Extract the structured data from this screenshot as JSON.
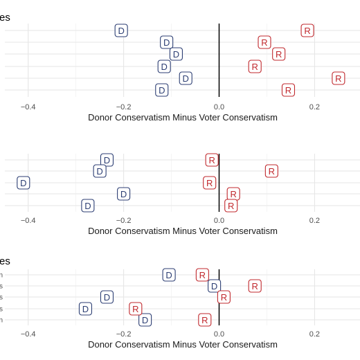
{
  "colors": {
    "D": "#2c3e73",
    "R": "#c0282d",
    "grid": "#e6e6e6",
    "zero": "#000000"
  },
  "chart_data": [
    {
      "type": "scatter",
      "title": "es",
      "xlabel": "Donor Conservatism Minus Voter Conservatism",
      "ylabel": "",
      "xlim": [
        -0.46,
        0.3
      ],
      "x_ticks": [
        -0.4,
        -0.2,
        0.0,
        0.2
      ],
      "x_tick_labels": [
        "−0.4",
        "−0.2",
        "0.0",
        "0.2"
      ],
      "category_labels": [
        "",
        "",
        "",
        "",
        "",
        ""
      ],
      "grid": true,
      "series": [
        {
          "name": "D",
          "points": [
            {
              "row": 1,
              "x": -0.205
            },
            {
              "row": 2,
              "x": -0.11
            },
            {
              "row": 3,
              "x": -0.09
            },
            {
              "row": 4,
              "x": -0.115
            },
            {
              "row": 5,
              "x": -0.07
            },
            {
              "row": 6,
              "x": -0.12
            }
          ]
        },
        {
          "name": "R",
          "points": [
            {
              "row": 1,
              "x": 0.185
            },
            {
              "row": 2,
              "x": 0.095
            },
            {
              "row": 3,
              "x": 0.125
            },
            {
              "row": 4,
              "x": 0.075
            },
            {
              "row": 5,
              "x": 0.25
            },
            {
              "row": 6,
              "x": 0.145
            }
          ]
        }
      ]
    },
    {
      "type": "scatter",
      "title": "",
      "xlabel": "Donor Conservatism Minus Voter Conservatism",
      "ylabel": "",
      "xlim": [
        -0.46,
        0.3
      ],
      "x_ticks": [
        -0.4,
        -0.2,
        0.0,
        0.2
      ],
      "x_tick_labels": [
        "−0.4",
        "−0.2",
        "0.0",
        "0.2"
      ],
      "category_labels": [
        "",
        "",
        "",
        "",
        ""
      ],
      "grid": true,
      "series": [
        {
          "name": "D",
          "points": [
            {
              "row": 1,
              "x": -0.235
            },
            {
              "row": 2,
              "x": -0.25
            },
            {
              "row": 3,
              "x": -0.41
            },
            {
              "row": 4,
              "x": -0.2
            },
            {
              "row": 5,
              "x": -0.275
            }
          ]
        },
        {
          "name": "R",
          "points": [
            {
              "row": 1,
              "x": -0.015
            },
            {
              "row": 2,
              "x": 0.11
            },
            {
              "row": 3,
              "x": -0.02
            },
            {
              "row": 4,
              "x": 0.03
            },
            {
              "row": 5,
              "x": 0.025
            }
          ]
        }
      ]
    },
    {
      "type": "scatter",
      "title": "es",
      "xlabel": "Donor Conservatism Minus Voter Conservatism",
      "ylabel": "",
      "xlim": [
        -0.46,
        0.3
      ],
      "x_ticks": [
        -0.4,
        -0.2,
        0.0,
        0.2
      ],
      "x_tick_labels": [
        "−0.4",
        "−0.2",
        "0.0",
        "0.2"
      ],
      "category_labels": [
        "n",
        "s",
        "s",
        "s",
        "n"
      ],
      "grid": true,
      "series": [
        {
          "name": "D",
          "points": [
            {
              "row": 1,
              "x": -0.105
            },
            {
              "row": 2,
              "x": -0.01
            },
            {
              "row": 3,
              "x": -0.235
            },
            {
              "row": 4,
              "x": -0.28
            },
            {
              "row": 5,
              "x": -0.155
            }
          ]
        },
        {
          "name": "R",
          "points": [
            {
              "row": 1,
              "x": -0.035
            },
            {
              "row": 2,
              "x": 0.075
            },
            {
              "row": 3,
              "x": 0.01
            },
            {
              "row": 4,
              "x": -0.175
            },
            {
              "row": 5,
              "x": -0.03
            }
          ]
        }
      ]
    }
  ]
}
